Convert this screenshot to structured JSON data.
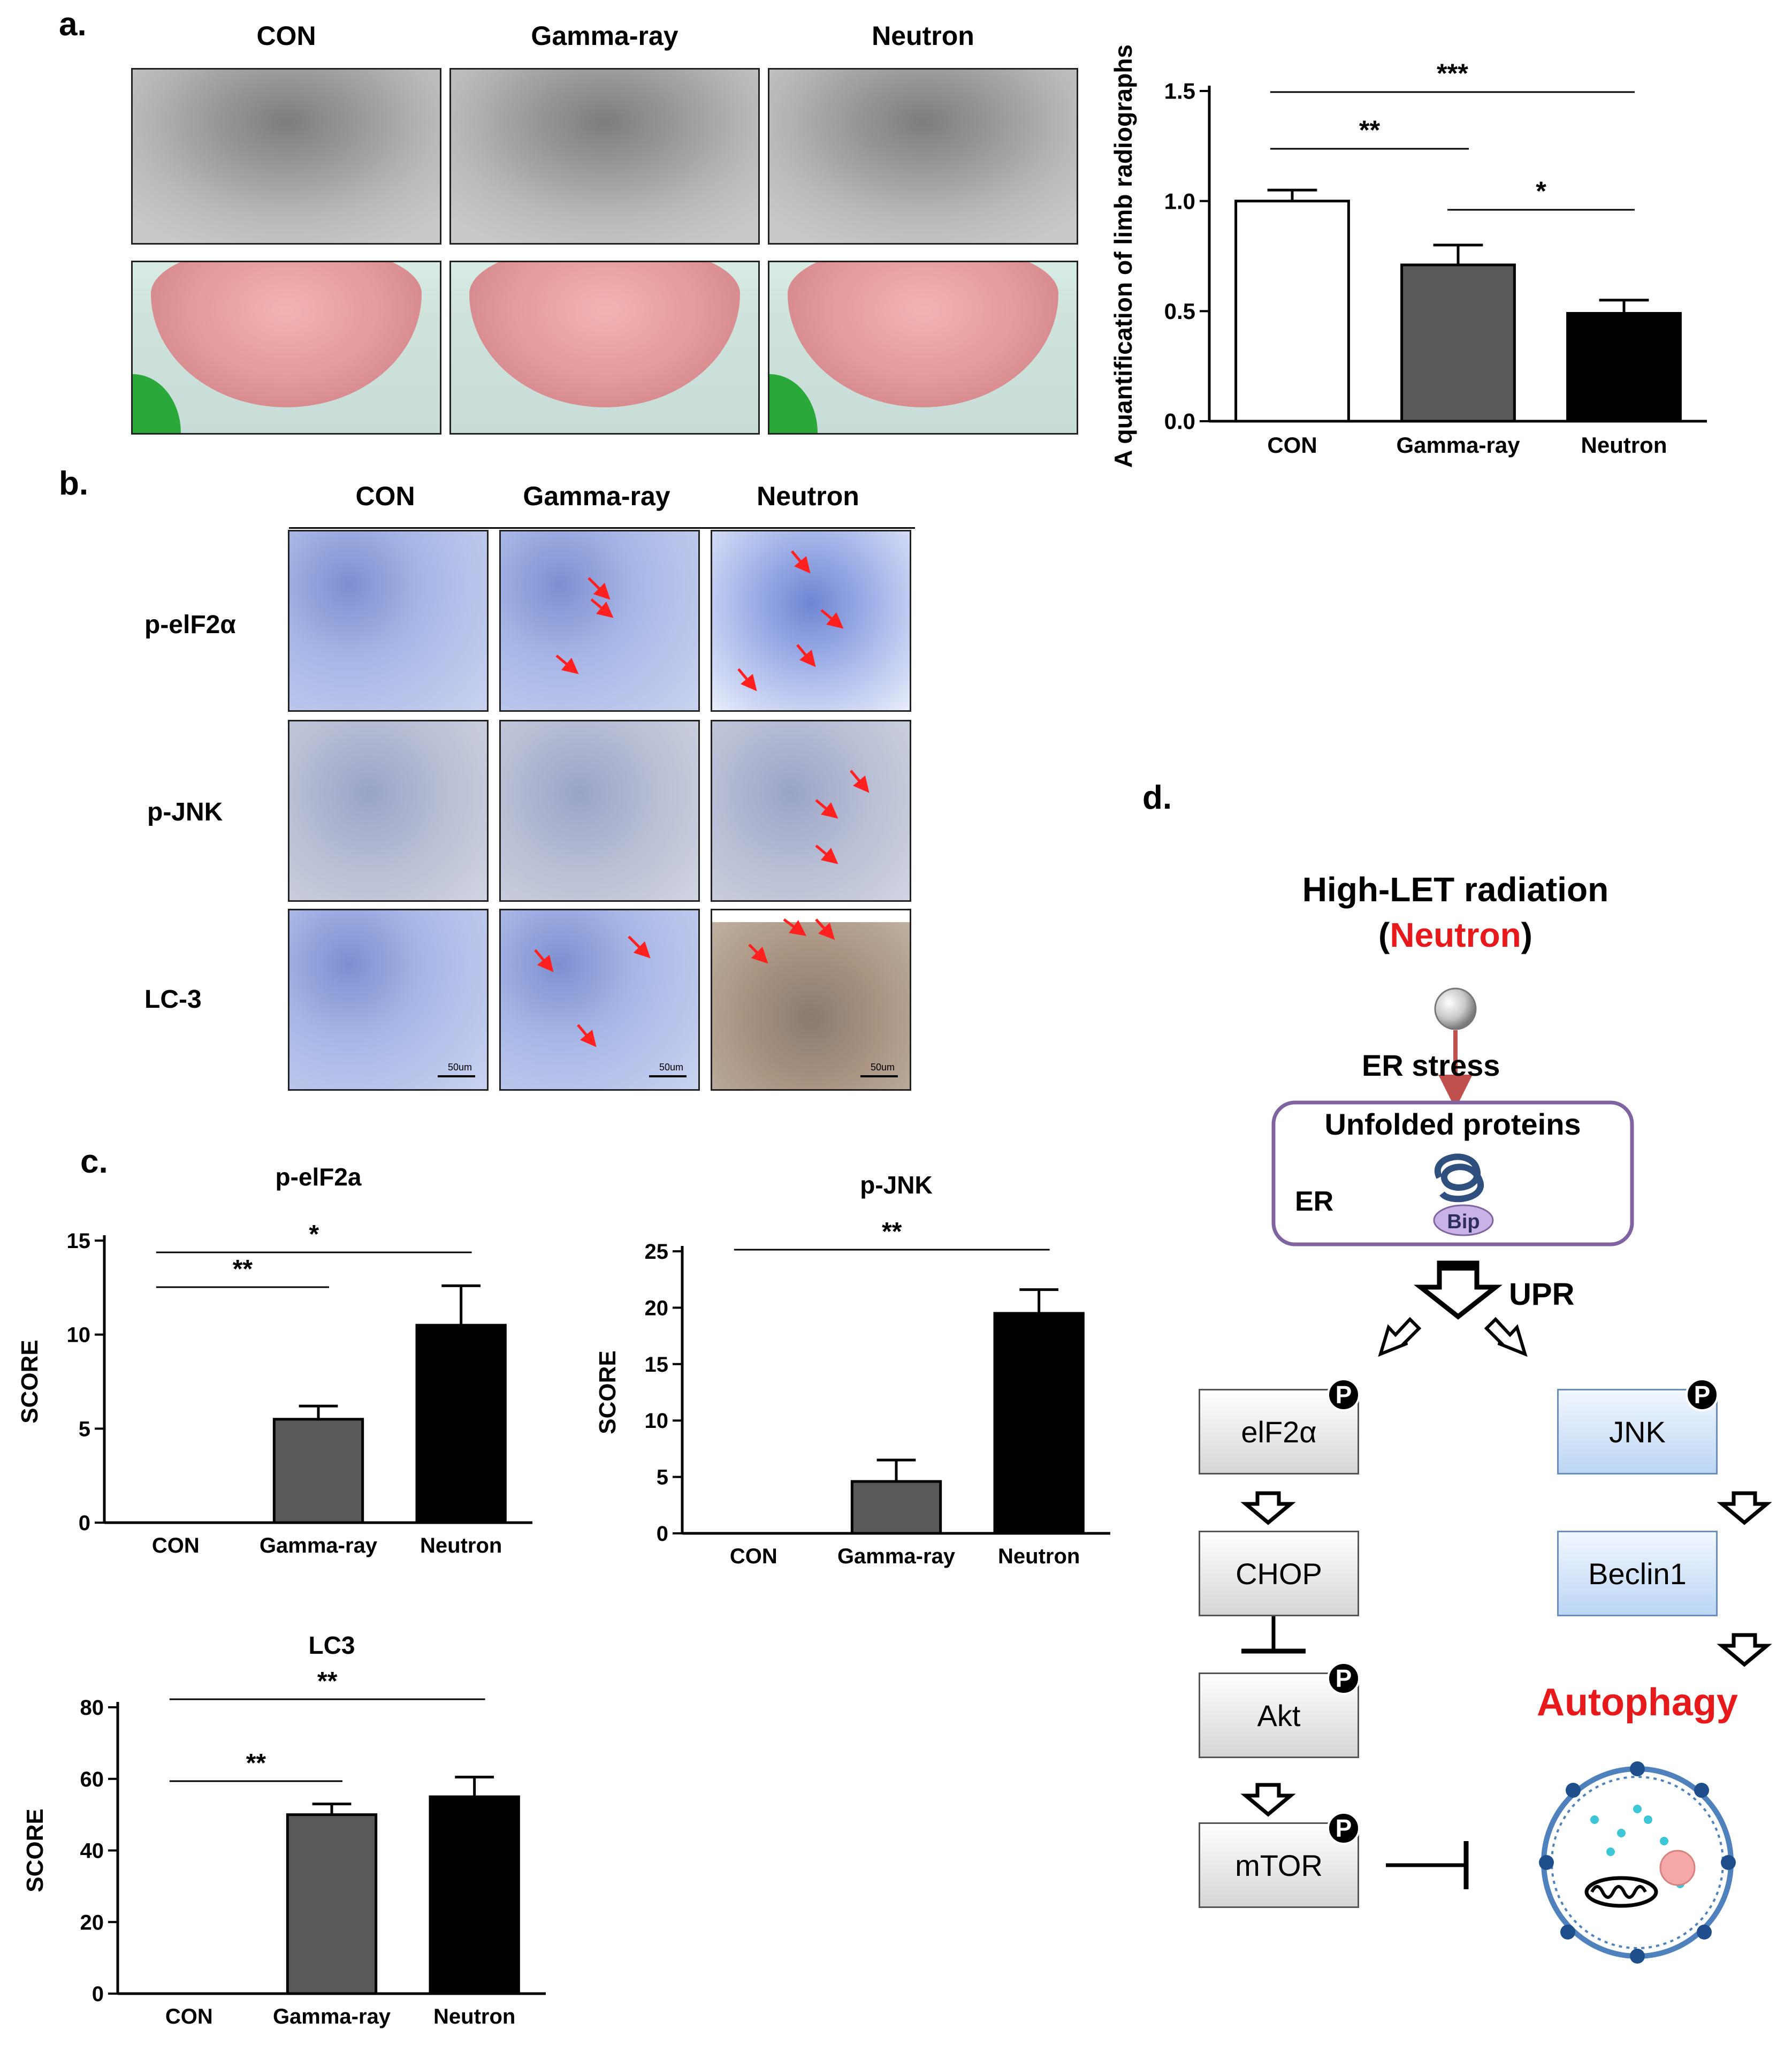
{
  "panel_a": {
    "label": "a.",
    "columns": [
      "CON",
      "Gamma-ray",
      "Neutron"
    ]
  },
  "panel_b": {
    "label": "b.",
    "columns": [
      "CON",
      "Gamma-ray",
      "Neutron"
    ],
    "rows": [
      "p-elF2α",
      "p-JNK",
      "LC-3"
    ],
    "scale_bar_label": "50um"
  },
  "panel_c": {
    "label": "c."
  },
  "panel_d": {
    "label": "d.",
    "title": "High-LET radiation",
    "subtitle_open": "(",
    "subtitle_highlight": "Neutron",
    "subtitle_close": ")",
    "er_stress": "ER stress",
    "er_box_title": "Unfolded proteins",
    "er_label": "ER",
    "bip_label": "Bip",
    "upr_label": "UPR",
    "left_nodes": [
      "elF2α",
      "CHOP",
      "Akt",
      "mTOR"
    ],
    "right_nodes": [
      "JNK",
      "Beclin1"
    ],
    "phospho_badge": "P",
    "autophagy_label": "Autophagy",
    "accent_red": "#e8191a"
  },
  "chart_data": [
    {
      "type": "bar",
      "title": "",
      "ylabel": "A quantification of limb radiographs",
      "categories": [
        "CON",
        "Gamma-ray",
        "Neutron"
      ],
      "values": [
        1.0,
        0.71,
        0.49
      ],
      "errors": [
        0.05,
        0.09,
        0.06
      ],
      "ylim": [
        0,
        1.5
      ],
      "yticks": [
        "0.0",
        "0.5",
        "1.0",
        "1.5"
      ],
      "colors": [
        "#ffffff",
        "#595959",
        "#000000"
      ],
      "significance": [
        {
          "from": 0,
          "to": 1,
          "label": "**"
        },
        {
          "from": 0,
          "to": 2,
          "label": "***"
        },
        {
          "from": 1,
          "to": 2,
          "label": "*"
        }
      ]
    },
    {
      "type": "bar",
      "title": "p-elF2a",
      "ylabel": "SCORE",
      "categories": [
        "CON",
        "Gamma-ray",
        "Neutron"
      ],
      "values": [
        0,
        5.5,
        10.5
      ],
      "errors": [
        0,
        0.7,
        2.1
      ],
      "ylim": [
        0,
        15
      ],
      "yticks": [
        "0",
        "5",
        "10",
        "15"
      ],
      "colors": [
        "#ffffff",
        "#595959",
        "#000000"
      ],
      "significance": [
        {
          "from": 0,
          "to": 1,
          "label": "**"
        },
        {
          "from": 0,
          "to": 2,
          "label": "*"
        }
      ]
    },
    {
      "type": "bar",
      "title": "p-JNK",
      "ylabel": "SCORE",
      "categories": [
        "CON",
        "Gamma-ray",
        "Neutron"
      ],
      "values": [
        0,
        4.6,
        19.5
      ],
      "errors": [
        0,
        1.9,
        2.1
      ],
      "ylim": [
        0,
        25
      ],
      "yticks": [
        "0",
        "5",
        "10",
        "15",
        "20",
        "25"
      ],
      "colors": [
        "#ffffff",
        "#595959",
        "#000000"
      ],
      "significance": [
        {
          "from": 0,
          "to": 2,
          "label": "**"
        }
      ]
    },
    {
      "type": "bar",
      "title": "LC3",
      "ylabel": "SCORE",
      "categories": [
        "CON",
        "Gamma-ray",
        "Neutron"
      ],
      "values": [
        0,
        50,
        55
      ],
      "errors": [
        0,
        3,
        5.5
      ],
      "ylim": [
        0,
        80
      ],
      "yticks": [
        "0",
        "20",
        "40",
        "60",
        "80"
      ],
      "colors": [
        "#ffffff",
        "#595959",
        "#000000"
      ],
      "significance": [
        {
          "from": 0,
          "to": 1,
          "label": "**"
        },
        {
          "from": 0,
          "to": 2,
          "label": "**"
        }
      ]
    }
  ]
}
